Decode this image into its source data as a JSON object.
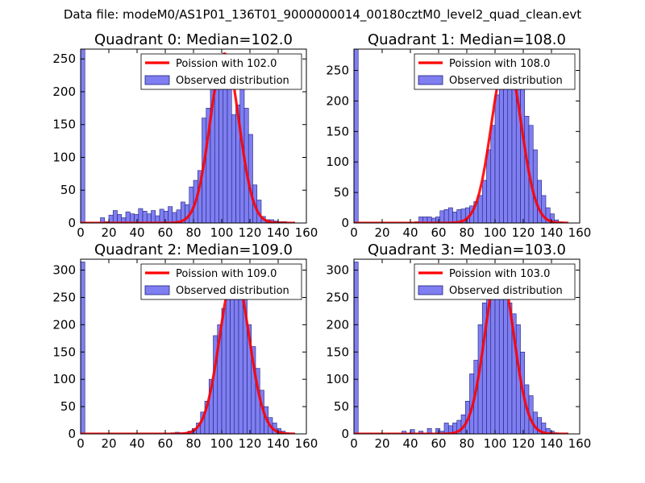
{
  "figure_title": "Data file: modeM0/AS1P01_136T01_9000000014_00180cztM0_level2_quad_clean.evt",
  "colors": {
    "bar_fill": "#7f7ff2",
    "bar_edge": "#1f1f7a",
    "curve": "#ff0000",
    "axes": "#000000",
    "background": "#ffffff"
  },
  "chart_data": [
    {
      "type": "bar",
      "title": "Quadrant 0: Median=102.0",
      "xlim": [
        0,
        160
      ],
      "ylim": [
        0,
        265
      ],
      "xticks": [
        0,
        20,
        40,
        60,
        80,
        100,
        120,
        140,
        160
      ],
      "xtick_labels": [
        "0",
        "20",
        "40",
        "60",
        "80",
        "100",
        "120",
        "140",
        "160"
      ],
      "yticks": [
        0,
        50,
        100,
        150,
        200,
        250
      ],
      "ytick_labels": [
        "0",
        "50",
        "100",
        "150",
        "200",
        "250"
      ],
      "bin_width": 3,
      "bin_starts": [
        0,
        14,
        17,
        20,
        23,
        26,
        29,
        32,
        35,
        38,
        41,
        44,
        47,
        50,
        53,
        56,
        59,
        62,
        65,
        68,
        71,
        74,
        77,
        80,
        83,
        86,
        89,
        92,
        95,
        98,
        101,
        104,
        107,
        110,
        113,
        116,
        119,
        122,
        125,
        128,
        131,
        134,
        137,
        140,
        143
      ],
      "values": [
        265,
        8,
        2,
        12,
        19,
        13,
        8,
        17,
        14,
        13,
        22,
        18,
        14,
        19,
        11,
        21,
        18,
        25,
        16,
        20,
        32,
        28,
        55,
        65,
        80,
        160,
        175,
        225,
        240,
        228,
        225,
        211,
        165,
        180,
        218,
        175,
        135,
        58,
        35,
        10,
        5,
        5,
        3,
        2,
        2
      ],
      "curve": {
        "label": "Poission with 102.0",
        "mean": 102.0,
        "peak": 258,
        "sigma": 10.1
      },
      "legend": {
        "curve_label": "Poission with 102.0",
        "bars_label": "Observed distribution",
        "location": "upper right"
      }
    },
    {
      "type": "bar",
      "title": "Quadrant 1: Median=108.0",
      "xlim": [
        0,
        160
      ],
      "ylim": [
        0,
        285
      ],
      "xticks": [
        0,
        20,
        40,
        60,
        80,
        100,
        120,
        140,
        160
      ],
      "xtick_labels": [
        "0",
        "20",
        "40",
        "60",
        "80",
        "100",
        "120",
        "140",
        "160"
      ],
      "yticks": [
        0,
        50,
        100,
        150,
        200,
        250
      ],
      "ytick_labels": [
        "0",
        "50",
        "100",
        "150",
        "200",
        "250"
      ],
      "bin_width": 3,
      "bin_starts": [
        0,
        43,
        46,
        49,
        52,
        55,
        58,
        61,
        64,
        67,
        70,
        73,
        76,
        79,
        82,
        85,
        88,
        91,
        94,
        97,
        100,
        103,
        106,
        109,
        112,
        115,
        118,
        121,
        124,
        127,
        130,
        133,
        136,
        139,
        142,
        145
      ],
      "values": [
        285,
        2,
        10,
        10,
        10,
        8,
        10,
        20,
        22,
        25,
        18,
        22,
        23,
        25,
        28,
        35,
        45,
        70,
        120,
        160,
        210,
        225,
        240,
        250,
        260,
        250,
        230,
        175,
        160,
        120,
        70,
        45,
        25,
        15,
        5,
        2
      ],
      "curve": {
        "label": "Poission with 108.0",
        "mean": 108.0,
        "peak": 272,
        "sigma": 10.4
      },
      "legend": {
        "curve_label": "Poission with 108.0",
        "bars_label": "Observed distribution",
        "location": "upper right"
      }
    },
    {
      "type": "bar",
      "title": "Quadrant 2: Median=109.0",
      "xlim": [
        0,
        160
      ],
      "ylim": [
        0,
        320
      ],
      "xticks": [
        0,
        20,
        40,
        60,
        80,
        100,
        120,
        140,
        160
      ],
      "xtick_labels": [
        "0",
        "20",
        "40",
        "60",
        "80",
        "100",
        "120",
        "140",
        "160"
      ],
      "yticks": [
        0,
        50,
        100,
        150,
        200,
        250,
        300
      ],
      "ytick_labels": [
        "0",
        "50",
        "100",
        "150",
        "200",
        "250",
        "300"
      ],
      "bin_width": 3,
      "bin_starts": [
        0,
        64,
        67,
        70,
        73,
        76,
        79,
        82,
        85,
        88,
        91,
        94,
        97,
        100,
        103,
        106,
        109,
        112,
        115,
        118,
        121,
        124,
        127,
        130,
        133,
        136,
        139,
        142,
        145
      ],
      "values": [
        315,
        2,
        3,
        2,
        2,
        5,
        10,
        20,
        40,
        60,
        100,
        180,
        200,
        230,
        260,
        280,
        300,
        290,
        250,
        200,
        160,
        120,
        80,
        50,
        30,
        20,
        10,
        5,
        2
      ],
      "curve": {
        "label": "Poission with 109.0",
        "mean": 109.0,
        "peak": 295,
        "sigma": 10.4
      },
      "legend": {
        "curve_label": "Poission with 109.0",
        "bars_label": "Observed distribution",
        "location": "upper right"
      }
    },
    {
      "type": "bar",
      "title": "Quadrant 3: Median=103.0",
      "xlim": [
        0,
        160
      ],
      "ylim": [
        0,
        320
      ],
      "xticks": [
        0,
        20,
        40,
        60,
        80,
        100,
        120,
        140,
        160
      ],
      "xtick_labels": [
        "0",
        "20",
        "40",
        "60",
        "80",
        "100",
        "120",
        "140",
        "160"
      ],
      "yticks": [
        0,
        50,
        100,
        150,
        200,
        250,
        300
      ],
      "ytick_labels": [
        "0",
        "50",
        "100",
        "150",
        "200",
        "250",
        "300"
      ],
      "bin_width": 3,
      "bin_starts": [
        0,
        34,
        40,
        46,
        52,
        58,
        61,
        64,
        67,
        70,
        73,
        76,
        79,
        82,
        85,
        88,
        91,
        94,
        97,
        100,
        103,
        106,
        109,
        112,
        115,
        118,
        121,
        124,
        127,
        130,
        133,
        136,
        139,
        142
      ],
      "values": [
        315,
        5,
        8,
        5,
        10,
        10,
        5,
        20,
        15,
        20,
        25,
        35,
        60,
        110,
        135,
        200,
        240,
        255,
        250,
        270,
        300,
        285,
        240,
        220,
        200,
        150,
        90,
        70,
        40,
        30,
        20,
        10,
        5,
        2
      ],
      "curve": {
        "label": "Poission with 103.0",
        "mean": 103.0,
        "peak": 305,
        "sigma": 10.1
      },
      "legend": {
        "curve_label": "Poission with 103.0",
        "bars_label": "Observed distribution",
        "location": "upper right"
      }
    }
  ]
}
